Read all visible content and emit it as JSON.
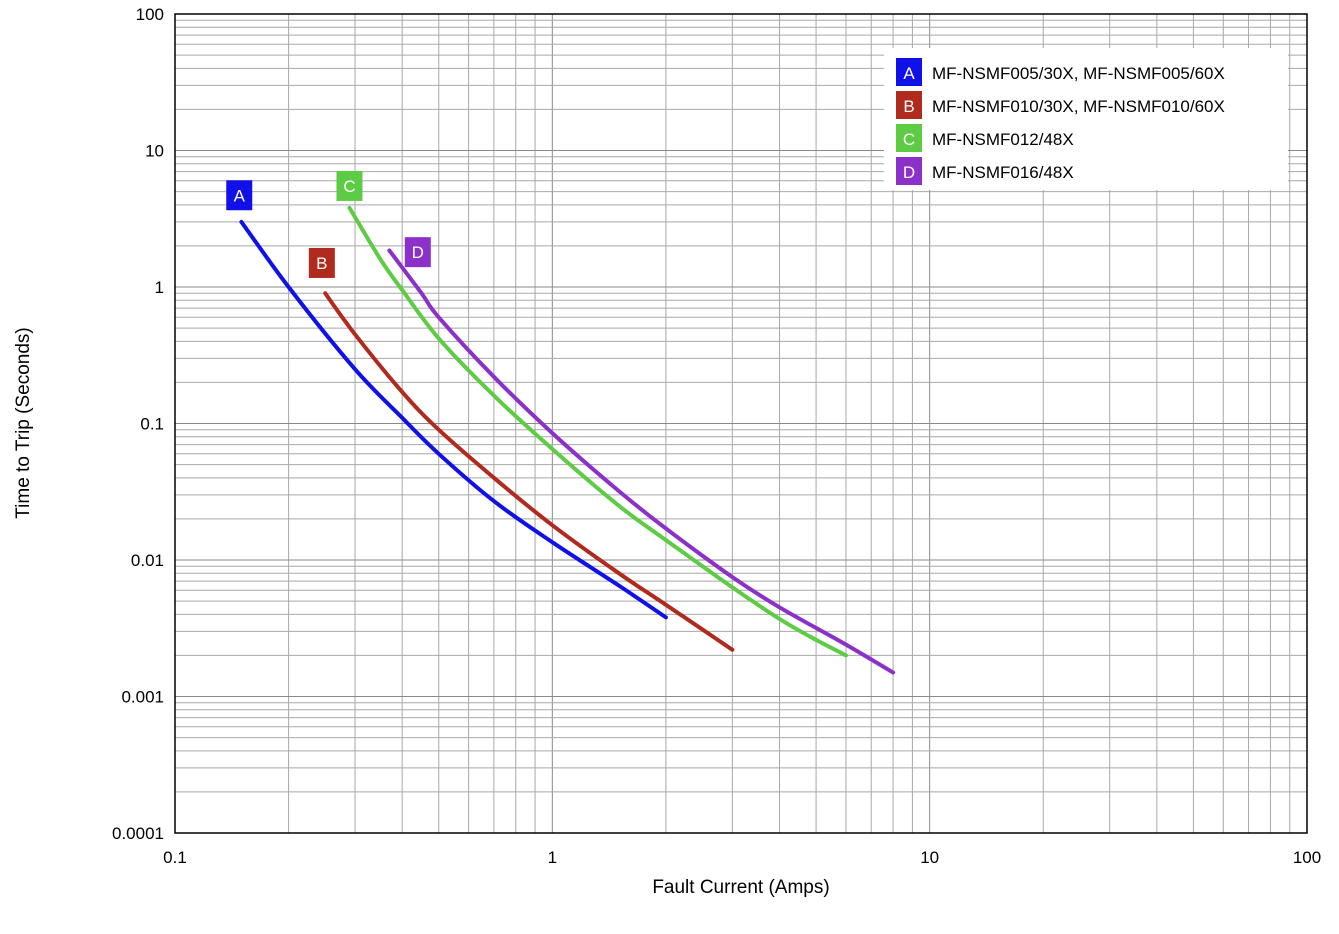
{
  "chart_data": {
    "type": "line",
    "title": "",
    "xlabel": "Fault Current (Amps)",
    "ylabel": "Time to Trip (Seconds)",
    "xscale": "log",
    "yscale": "log",
    "xlim": [
      0.1,
      100
    ],
    "ylim": [
      0.0001,
      100
    ],
    "x_ticks": [
      "0.1",
      "1",
      "10",
      "100"
    ],
    "y_ticks": [
      "0.0001",
      "0.001",
      "0.01",
      "0.1",
      "1",
      "10",
      "100"
    ],
    "grid": true,
    "legend_position": "top-right",
    "series": [
      {
        "tag": "A",
        "name": "MF-NSMF005/30X, MF-NSMF005/60X",
        "color": "#1010e8",
        "points": [
          [
            0.15,
            3.0
          ],
          [
            0.2,
            1.0
          ],
          [
            0.3,
            0.25
          ],
          [
            0.4,
            0.11
          ],
          [
            0.5,
            0.06
          ],
          [
            0.7,
            0.027
          ],
          [
            1.0,
            0.0135
          ],
          [
            1.5,
            0.0065
          ],
          [
            2.0,
            0.0038
          ]
        ]
      },
      {
        "tag": "B",
        "name": "MF-NSMF010/30X, MF-NSMF010/60X",
        "color": "#b02a1e",
        "points": [
          [
            0.25,
            0.9
          ],
          [
            0.3,
            0.45
          ],
          [
            0.4,
            0.17
          ],
          [
            0.5,
            0.09
          ],
          [
            0.7,
            0.04
          ],
          [
            1.0,
            0.018
          ],
          [
            1.5,
            0.008
          ],
          [
            2.0,
            0.0047
          ],
          [
            3.0,
            0.0022
          ]
        ]
      },
      {
        "tag": "C",
        "name": "MF-NSMF012/48X",
        "color": "#5ecb45",
        "points": [
          [
            0.29,
            3.8
          ],
          [
            0.35,
            1.6
          ],
          [
            0.4,
            0.95
          ],
          [
            0.5,
            0.42
          ],
          [
            0.7,
            0.16
          ],
          [
            1.0,
            0.065
          ],
          [
            1.5,
            0.025
          ],
          [
            2.0,
            0.014
          ],
          [
            3.0,
            0.0063
          ],
          [
            4.0,
            0.0037
          ],
          [
            5.0,
            0.0026
          ],
          [
            6.0,
            0.002
          ]
        ]
      },
      {
        "tag": "D",
        "name": "MF-NSMF016/48X",
        "color": "#8b30c8",
        "points": [
          [
            0.37,
            1.85
          ],
          [
            0.45,
            0.9
          ],
          [
            0.5,
            0.6
          ],
          [
            0.7,
            0.22
          ],
          [
            1.0,
            0.085
          ],
          [
            1.5,
            0.032
          ],
          [
            2.0,
            0.017
          ],
          [
            3.0,
            0.0075
          ],
          [
            4.0,
            0.0045
          ],
          [
            6.0,
            0.0024
          ],
          [
            8.0,
            0.0015
          ]
        ]
      }
    ],
    "curve_tags": [
      {
        "tag": "A",
        "x": 0.148,
        "y": 4.7
      },
      {
        "tag": "B",
        "x": 0.245,
        "y": 1.5
      },
      {
        "tag": "C",
        "x": 0.29,
        "y": 5.5
      },
      {
        "tag": "D",
        "x": 0.44,
        "y": 1.8
      }
    ]
  }
}
